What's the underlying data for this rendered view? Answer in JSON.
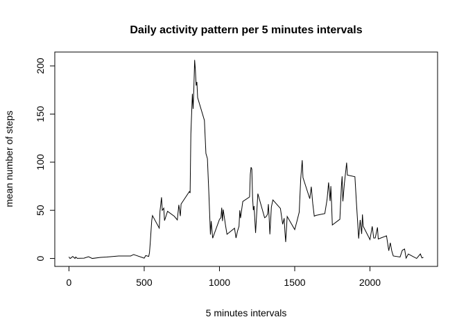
{
  "chart_data": {
    "type": "line",
    "title": "Daily activity pattern per 5 minutes intervals",
    "x_label": "5 minutes intervals",
    "y_label": "mean number of steps",
    "color": "#000000",
    "xlim": [
      -94.2,
      2449.2
    ],
    "xticks": [
      0,
      500,
      1000,
      1500,
      2000
    ],
    "ylim": [
      -8.25,
      214.42
    ],
    "yticks": [
      0,
      50,
      100,
      150,
      200
    ],
    "x": [
      0,
      5,
      10,
      25,
      40,
      45,
      55,
      100,
      130,
      155,
      210,
      250,
      330,
      410,
      430,
      440,
      500,
      510,
      530,
      535,
      540,
      550,
      555,
      600,
      605,
      615,
      620,
      630,
      635,
      655,
      700,
      720,
      730,
      740,
      745,
      800,
      805,
      810,
      820,
      825,
      830,
      835,
      840,
      845,
      850,
      855,
      900,
      910,
      920,
      930,
      940,
      945,
      955,
      1000,
      1010,
      1015,
      1020,
      1025,
      1040,
      1050,
      1100,
      1110,
      1120,
      1130,
      1135,
      1140,
      1155,
      1200,
      1205,
      1210,
      1215,
      1220,
      1225,
      1230,
      1240,
      1255,
      1300,
      1310,
      1320,
      1325,
      1330,
      1335,
      1345,
      1355,
      1405,
      1420,
      1430,
      1435,
      1440,
      1450,
      1500,
      1515,
      1530,
      1540,
      1550,
      1555,
      1600,
      1610,
      1620,
      1630,
      1640,
      1700,
      1715,
      1725,
      1735,
      1740,
      1745,
      1750,
      1800,
      1810,
      1815,
      1820,
      1830,
      1845,
      1850,
      1900,
      1910,
      1925,
      1935,
      1945,
      1950,
      1955,
      2000,
      2015,
      2025,
      2035,
      2050,
      2055,
      2110,
      2125,
      2135,
      2145,
      2155,
      2200,
      2215,
      2230,
      2240,
      2255,
      2310,
      2335,
      2345,
      2355
    ],
    "values": [
      1.7,
      0.3,
      0.1,
      2.1,
      0,
      1.5,
      0.1,
      0.3,
      1.8,
      0,
      1.1,
      1.5,
      2.6,
      2.6,
      4.1,
      3.5,
      0.3,
      3,
      2.1,
      6,
      16,
      39.5,
      44.5,
      31.5,
      49.3,
      63.5,
      50,
      52.2,
      39.3,
      49,
      43.8,
      40,
      55.7,
      44,
      56.5,
      69.5,
      68,
      129.4,
      171,
      155.4,
      177.3,
      206.2,
      195.9,
      179.6,
      183.4,
      167,
      143.5,
      109.1,
      103.7,
      66.2,
      24.8,
      38.8,
      21.1,
      40.6,
      42.4,
      52.7,
      38.9,
      50.8,
      34.7,
      25.1,
      31.4,
      21.3,
      28.4,
      33.4,
      50,
      42,
      59.2,
      63.9,
      87.6,
      94.8,
      92.8,
      63.4,
      50.2,
      54.5,
      26.5,
      67.3,
      42.3,
      43.3,
      46.2,
      56.4,
      42.8,
      25.1,
      53.5,
      60.8,
      51.96,
      35.5,
      41.8,
      27.5,
      17.1,
      43.6,
      30,
      38.8,
      48.1,
      82.9,
      102.1,
      83.96,
      62.1,
      74.5,
      56.9,
      43.9,
      44.7,
      46.6,
      61.2,
      78.9,
      59.7,
      75.1,
      56.5,
      34.8,
      40.7,
      74.7,
      85.3,
      59.3,
      77.7,
      99.5,
      86.6,
      84.9,
      58,
      20.7,
      40,
      25.5,
      45.7,
      33.5,
      19.6,
      33.3,
      21.2,
      21.3,
      32.3,
      20.2,
      23.5,
      8,
      16.3,
      7.8,
      2.6,
      1.5,
      8.5,
      9.8,
      0.3,
      4.6,
      0,
      4.7,
      0.6,
      1.1
    ]
  }
}
